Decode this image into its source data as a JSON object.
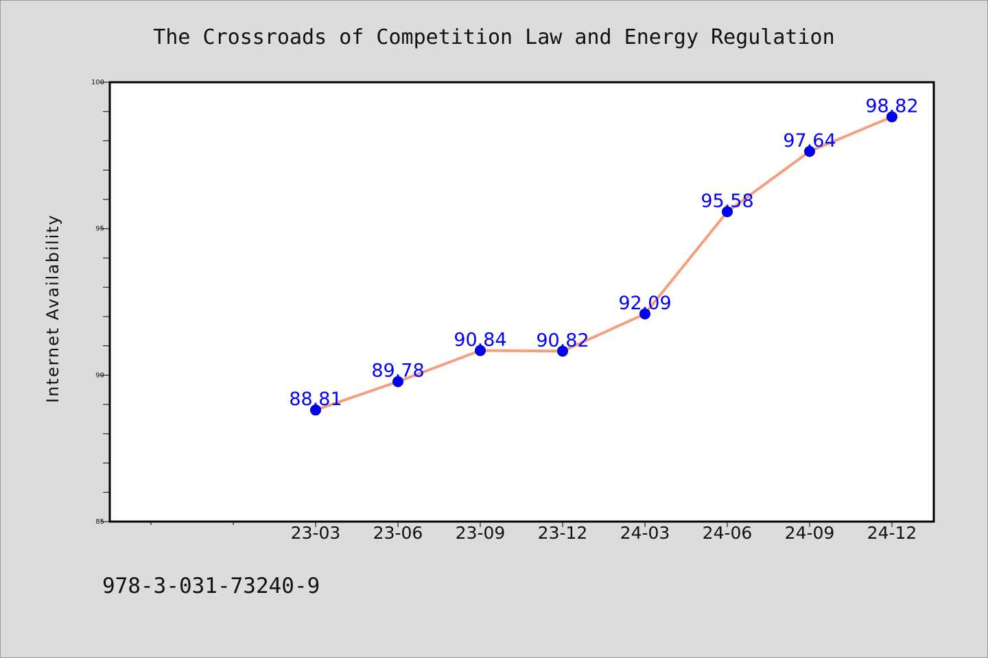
{
  "chart_data": {
    "type": "line",
    "title": "The Crossroads of Competition Law and Energy Regulation",
    "xlabel": "",
    "ylabel": "Internet Availability",
    "categories": [
      "23-03",
      "23-06",
      "23-09",
      "23-12",
      "24-03",
      "24-06",
      "24-09",
      "24-12"
    ],
    "series": [
      {
        "values": [
          88.81,
          89.78,
          90.84,
          90.82,
          92.09,
          95.58,
          97.64,
          98.82
        ],
        "data_labels": [
          "88.81",
          "89.78",
          "90.84",
          "90.82",
          "92.09",
          "95.58",
          "97.64",
          "98.82"
        ],
        "line_color": "#f4a07e",
        "marker_color": "#0000ff"
      }
    ],
    "yticks": [
      85,
      90,
      95,
      100
    ],
    "ytick_labels": [
      "85",
      "90",
      "95",
      "100"
    ],
    "ylim": [
      85,
      100
    ],
    "xlim_categories_before_first": 2.5,
    "grid": false,
    "legend": "none",
    "plot_background": "#ffffff",
    "figure_background": "#dcdcdc"
  },
  "footer": {
    "isbn": "978-3-031-73240-9"
  }
}
